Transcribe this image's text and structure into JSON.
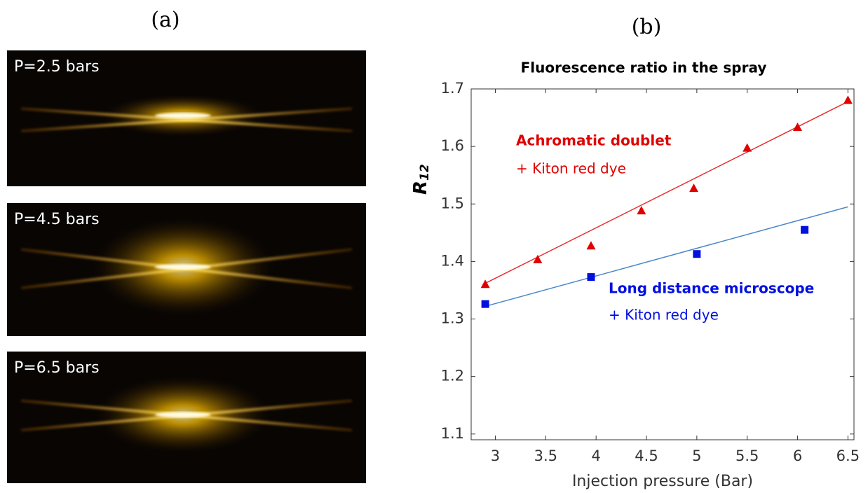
{
  "panel_a": {
    "label": "(a)",
    "images": [
      {
        "label": "P=2.5 bars"
      },
      {
        "label": "P=4.5 bars"
      },
      {
        "label": "P=6.5 bars"
      }
    ]
  },
  "chart_data": {
    "type": "scatter",
    "panel_label": "(b)",
    "title": "Fluorescence ratio in the spray",
    "xlabel": "Injection pressure (Bar)",
    "ylabel": "R",
    "ylabel_subscript": "12",
    "xlim": [
      2.76,
      6.56
    ],
    "ylim": [
      1.09,
      1.7
    ],
    "xticks": [
      3,
      3.5,
      4,
      4.5,
      5,
      5.5,
      6,
      6.5
    ],
    "yticks": [
      1.1,
      1.2,
      1.3,
      1.4,
      1.5,
      1.6,
      1.7
    ],
    "grid": false,
    "series": [
      {
        "marker": "triangle",
        "color": "#e00000",
        "x": [
          2.9,
          3.42,
          3.95,
          4.45,
          4.97,
          5.5,
          6.0,
          6.5
        ],
        "values": [
          1.36,
          1.403,
          1.427,
          1.488,
          1.527,
          1.597,
          1.633,
          1.68
        ]
      },
      {
        "marker": "square",
        "color": "#0010e0",
        "x": [
          2.9,
          3.95,
          5.0,
          6.07
        ],
        "values": [
          1.326,
          1.373,
          1.413,
          1.455
        ]
      },
      {
        "marker": "line",
        "color": "#e83030",
        "x": [
          2.9,
          6.5
        ],
        "values": [
          1.362,
          1.678
        ]
      },
      {
        "marker": "line",
        "color": "#4a86c8",
        "x": [
          2.9,
          6.5
        ],
        "values": [
          1.322,
          1.495
        ]
      }
    ],
    "annotations": [
      {
        "text": "Achromatic doublet",
        "color": "#e00000",
        "bold": true
      },
      {
        "text": "+ Kiton red dye",
        "color": "#e00000",
        "bold": false
      },
      {
        "text": "Long distance microscope",
        "color": "#0010e0",
        "bold": true
      },
      {
        "text": "+ Kiton red dye",
        "color": "#0010e0",
        "bold": false
      }
    ]
  }
}
